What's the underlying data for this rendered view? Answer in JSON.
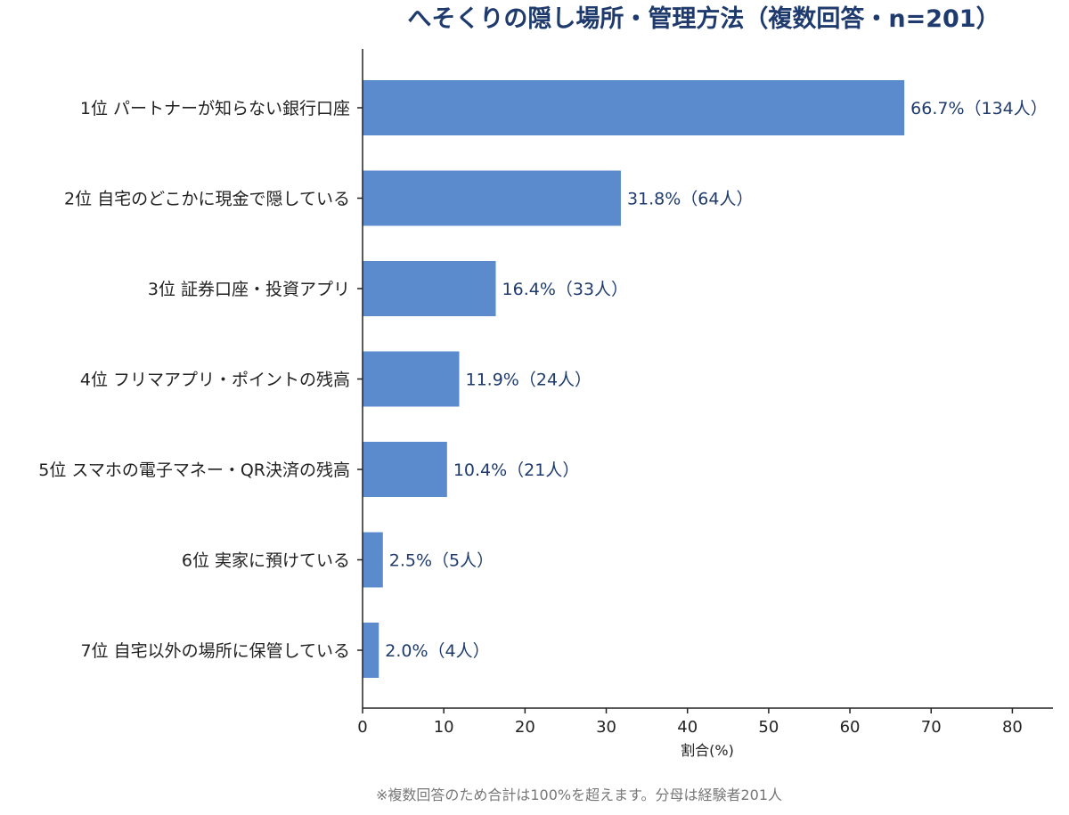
{
  "chart_data": {
    "type": "bar",
    "orientation": "horizontal",
    "title": "へそくりの隠し場所・管理方法（複数回答・n=201）",
    "xlabel": "割合(%)",
    "ylabel": "",
    "xlim": [
      0,
      85
    ],
    "xticks": [
      0,
      10,
      20,
      30,
      40,
      50,
      60,
      70,
      80
    ],
    "categories": [
      "1位 パートナーが知らない銀行口座",
      "2位 自宅のどこかに現金で隠している",
      "3位 証券口座・投資アプリ",
      "4位 フリマアプリ・ポイントの残高",
      "5位 スマホの電子マネー・QR決済の残高",
      "6位 実家に預けている",
      "7位 自宅以外の場所に保管している"
    ],
    "values": [
      66.7,
      31.8,
      16.4,
      11.9,
      10.4,
      2.5,
      2.0
    ],
    "data_labels": [
      "66.7%（134人）",
      "31.8%（64人）",
      "16.4%（33人）",
      "11.9%（24人）",
      "10.4%（21人）",
      "2.5%（5人）",
      "2.0%（4人）"
    ],
    "grid": false,
    "legend": "none",
    "bar_color": "#5b8bcc",
    "label_color": "#1f3b6e",
    "title_color": "#1f3b6e"
  },
  "footnote": "※複数回答のため合計は100%を超えます。分母は経験者201人"
}
